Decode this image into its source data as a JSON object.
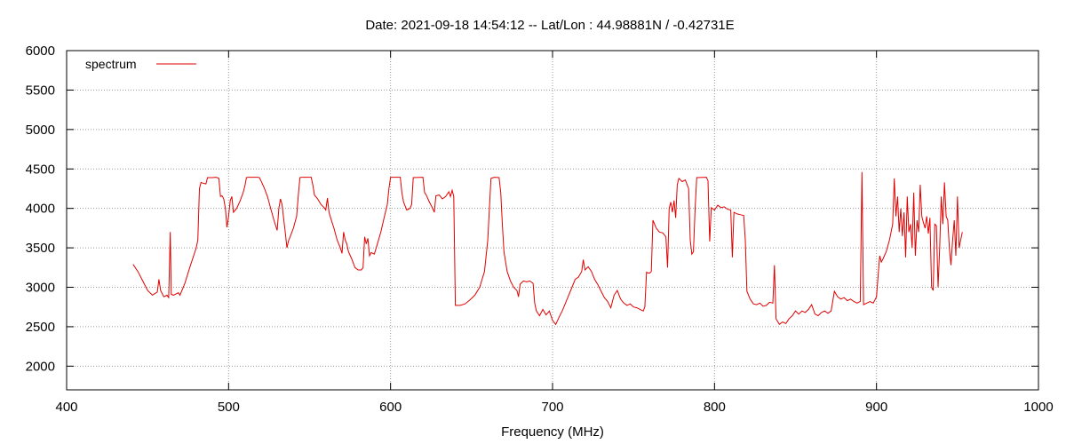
{
  "chart_data": {
    "type": "line",
    "title": "Date: 2021-09-18 14:54:12  --  Lat/Lon : 44.98881N / -0.42731E",
    "xlabel": "Frequency (MHz)",
    "ylabel": "",
    "xlim": [
      400,
      1000
    ],
    "ylim": [
      1700,
      6000
    ],
    "xticks": [
      400,
      500,
      600,
      700,
      800,
      900,
      1000
    ],
    "yticks": [
      2000,
      2500,
      3000,
      3500,
      4000,
      4500,
      5000,
      5500,
      6000
    ],
    "grid": true,
    "legend": "top-left",
    "series": [
      {
        "name": "spectrum",
        "color": "#e00000",
        "points": [
          [
            441,
            3290
          ],
          [
            444,
            3200
          ],
          [
            447,
            3080
          ],
          [
            450,
            2960
          ],
          [
            453,
            2900
          ],
          [
            456,
            2940
          ],
          [
            457,
            3100
          ],
          [
            458,
            2960
          ],
          [
            460,
            2880
          ],
          [
            462,
            2900
          ],
          [
            463,
            2870
          ],
          [
            464,
            3700
          ],
          [
            464.6,
            2910
          ],
          [
            466,
            2900
          ],
          [
            469,
            2930
          ],
          [
            470,
            2900
          ],
          [
            473,
            3050
          ],
          [
            476,
            3250
          ],
          [
            480,
            3500
          ],
          [
            481,
            3600
          ],
          [
            482,
            4250
          ],
          [
            483,
            4330
          ],
          [
            484,
            4320
          ],
          [
            486,
            4310
          ],
          [
            487,
            4390
          ],
          [
            490,
            4390
          ],
          [
            492,
            4395
          ],
          [
            493,
            4390
          ],
          [
            494,
            4380
          ],
          [
            495,
            4150
          ],
          [
            496,
            4160
          ],
          [
            497,
            4120
          ],
          [
            498,
            4000
          ],
          [
            499,
            3760
          ],
          [
            500,
            3900
          ],
          [
            501,
            4100
          ],
          [
            502,
            4150
          ],
          [
            503,
            3950
          ],
          [
            505,
            4000
          ],
          [
            507,
            4090
          ],
          [
            509,
            4200
          ],
          [
            510,
            4280
          ],
          [
            511,
            4390
          ],
          [
            512,
            4395
          ],
          [
            518,
            4395
          ],
          [
            519,
            4390
          ],
          [
            520,
            4350
          ],
          [
            522,
            4260
          ],
          [
            524,
            4150
          ],
          [
            526,
            4000
          ],
          [
            528,
            3850
          ],
          [
            530,
            3720
          ],
          [
            531,
            4000
          ],
          [
            532,
            4120
          ],
          [
            533,
            4050
          ],
          [
            534,
            3870
          ],
          [
            535,
            3700
          ],
          [
            536,
            3500
          ],
          [
            537,
            3590
          ],
          [
            538,
            3640
          ],
          [
            540,
            3750
          ],
          [
            542,
            3900
          ],
          [
            543,
            4150
          ],
          [
            544,
            4390
          ],
          [
            545,
            4395
          ],
          [
            551,
            4395
          ],
          [
            552,
            4300
          ],
          [
            553,
            4170
          ],
          [
            555,
            4120
          ],
          [
            557,
            4050
          ],
          [
            559,
            4010
          ],
          [
            560,
            3980
          ],
          [
            561,
            4130
          ],
          [
            562,
            3950
          ],
          [
            563,
            3880
          ],
          [
            565,
            3750
          ],
          [
            567,
            3600
          ],
          [
            569,
            3500
          ],
          [
            570,
            3430
          ],
          [
            571,
            3700
          ],
          [
            572,
            3600
          ],
          [
            573,
            3550
          ],
          [
            574,
            3450
          ],
          [
            576,
            3360
          ],
          [
            578,
            3250
          ],
          [
            580,
            3220
          ],
          [
            582,
            3220
          ],
          [
            583,
            3250
          ],
          [
            584,
            3640
          ],
          [
            585,
            3550
          ],
          [
            586,
            3620
          ],
          [
            587,
            3400
          ],
          [
            588,
            3440
          ],
          [
            590,
            3420
          ],
          [
            592,
            3560
          ],
          [
            594,
            3700
          ],
          [
            596,
            3880
          ],
          [
            598,
            4050
          ],
          [
            599,
            4250
          ],
          [
            600,
            4395
          ],
          [
            606,
            4395
          ],
          [
            607,
            4200
          ],
          [
            608,
            4080
          ],
          [
            610,
            3980
          ],
          [
            612,
            4000
          ],
          [
            613,
            4050
          ],
          [
            614,
            4390
          ],
          [
            620,
            4395
          ],
          [
            621,
            4200
          ],
          [
            622,
            4170
          ],
          [
            624,
            4080
          ],
          [
            626,
            4000
          ],
          [
            627,
            3950
          ],
          [
            628,
            4160
          ],
          [
            630,
            4170
          ],
          [
            632,
            4120
          ],
          [
            634,
            4150
          ],
          [
            636,
            4210
          ],
          [
            637,
            4150
          ],
          [
            638,
            4230
          ],
          [
            639,
            4150
          ],
          [
            640,
            2770
          ],
          [
            643,
            2770
          ],
          [
            646,
            2790
          ],
          [
            649,
            2840
          ],
          [
            652,
            2900
          ],
          [
            655,
            3000
          ],
          [
            658,
            3200
          ],
          [
            660,
            3600
          ],
          [
            661,
            4000
          ],
          [
            662,
            4380
          ],
          [
            664,
            4395
          ],
          [
            667,
            4390
          ],
          [
            668,
            4200
          ],
          [
            669,
            3800
          ],
          [
            670,
            3450
          ],
          [
            672,
            3200
          ],
          [
            674,
            3080
          ],
          [
            676,
            3000
          ],
          [
            678,
            2960
          ],
          [
            679,
            2880
          ],
          [
            680,
            3040
          ],
          [
            682,
            3080
          ],
          [
            684,
            3070
          ],
          [
            686,
            3080
          ],
          [
            688,
            3050
          ],
          [
            689,
            2800
          ],
          [
            690,
            2700
          ],
          [
            692,
            2640
          ],
          [
            694,
            2720
          ],
          [
            696,
            2650
          ],
          [
            698,
            2700
          ],
          [
            700,
            2580
          ],
          [
            702,
            2530
          ],
          [
            704,
            2620
          ],
          [
            706,
            2700
          ],
          [
            708,
            2800
          ],
          [
            710,
            2900
          ],
          [
            712,
            3000
          ],
          [
            714,
            3100
          ],
          [
            716,
            3130
          ],
          [
            718,
            3200
          ],
          [
            719,
            3350
          ],
          [
            720,
            3220
          ],
          [
            722,
            3260
          ],
          [
            724,
            3200
          ],
          [
            726,
            3100
          ],
          [
            728,
            3030
          ],
          [
            730,
            2950
          ],
          [
            732,
            2870
          ],
          [
            734,
            2820
          ],
          [
            736,
            2740
          ],
          [
            738,
            2900
          ],
          [
            740,
            2960
          ],
          [
            742,
            2850
          ],
          [
            744,
            2800
          ],
          [
            746,
            2770
          ],
          [
            748,
            2790
          ],
          [
            750,
            2750
          ],
          [
            752,
            2740
          ],
          [
            754,
            2720
          ],
          [
            756,
            2700
          ],
          [
            757,
            2750
          ],
          [
            758,
            3190
          ],
          [
            759,
            3180
          ],
          [
            760,
            3180
          ],
          [
            761,
            3200
          ],
          [
            762,
            3850
          ],
          [
            764,
            3750
          ],
          [
            766,
            3700
          ],
          [
            768,
            3690
          ],
          [
            770,
            3640
          ],
          [
            771,
            3250
          ],
          [
            772,
            4000
          ],
          [
            773,
            4080
          ],
          [
            774,
            3950
          ],
          [
            775,
            4100
          ],
          [
            776,
            3880
          ],
          [
            777,
            4300
          ],
          [
            778,
            4380
          ],
          [
            780,
            4340
          ],
          [
            782,
            4360
          ],
          [
            784,
            4250
          ],
          [
            785,
            3600
          ],
          [
            786,
            3420
          ],
          [
            787,
            3450
          ],
          [
            788,
            4000
          ],
          [
            789,
            4390
          ],
          [
            795,
            4395
          ],
          [
            796,
            4350
          ],
          [
            797,
            3580
          ],
          [
            798,
            4010
          ],
          [
            800,
            3980
          ],
          [
            802,
            4040
          ],
          [
            804,
            4010
          ],
          [
            806,
            4020
          ],
          [
            808,
            3990
          ],
          [
            810,
            3980
          ],
          [
            811,
            3380
          ],
          [
            812,
            3950
          ],
          [
            814,
            3930
          ],
          [
            816,
            3920
          ],
          [
            818,
            3910
          ],
          [
            819,
            3600
          ],
          [
            820,
            2950
          ],
          [
            822,
            2850
          ],
          [
            824,
            2790
          ],
          [
            826,
            2780
          ],
          [
            828,
            2800
          ],
          [
            830,
            2760
          ],
          [
            832,
            2770
          ],
          [
            834,
            2810
          ],
          [
            836,
            2800
          ],
          [
            837,
            3280
          ],
          [
            838,
            2600
          ],
          [
            840,
            2530
          ],
          [
            842,
            2560
          ],
          [
            844,
            2540
          ],
          [
            846,
            2600
          ],
          [
            848,
            2640
          ],
          [
            850,
            2700
          ],
          [
            852,
            2660
          ],
          [
            854,
            2700
          ],
          [
            856,
            2680
          ],
          [
            858,
            2720
          ],
          [
            860,
            2780
          ],
          [
            862,
            2660
          ],
          [
            864,
            2640
          ],
          [
            866,
            2680
          ],
          [
            868,
            2700
          ],
          [
            870,
            2670
          ],
          [
            872,
            2700
          ],
          [
            874,
            2950
          ],
          [
            876,
            2880
          ],
          [
            878,
            2850
          ],
          [
            880,
            2870
          ],
          [
            882,
            2830
          ],
          [
            884,
            2850
          ],
          [
            886,
            2820
          ],
          [
            888,
            2800
          ],
          [
            890,
            2820
          ],
          [
            891,
            4460
          ],
          [
            892,
            2780
          ],
          [
            894,
            2800
          ],
          [
            896,
            2820
          ],
          [
            898,
            2800
          ],
          [
            900,
            2880
          ],
          [
            901,
            3150
          ],
          [
            902,
            3400
          ],
          [
            903,
            3320
          ],
          [
            904,
            3360
          ],
          [
            906,
            3450
          ],
          [
            908,
            3600
          ],
          [
            910,
            3800
          ],
          [
            911,
            4380
          ],
          [
            912,
            3900
          ],
          [
            913,
            4150
          ],
          [
            914,
            3700
          ],
          [
            915,
            4000
          ],
          [
            916,
            3650
          ],
          [
            917,
            3950
          ],
          [
            918,
            3380
          ],
          [
            919,
            4150
          ],
          [
            920,
            3700
          ],
          [
            921,
            3800
          ],
          [
            922,
            3500
          ],
          [
            923,
            4200
          ],
          [
            924,
            3400
          ],
          [
            925,
            3850
          ],
          [
            926,
            3700
          ],
          [
            927,
            4300
          ],
          [
            928,
            3900
          ],
          [
            929,
            3820
          ],
          [
            930,
            3750
          ],
          [
            931,
            3900
          ],
          [
            932,
            3680
          ],
          [
            933,
            3880
          ],
          [
            934,
            3000
          ],
          [
            935,
            2960
          ],
          [
            936,
            3800
          ],
          [
            937,
            3780
          ],
          [
            938,
            3000
          ],
          [
            939,
            3500
          ],
          [
            940,
            4150
          ],
          [
            941,
            3800
          ],
          [
            942,
            4330
          ],
          [
            943,
            3900
          ],
          [
            944,
            3850
          ],
          [
            945,
            3500
          ],
          [
            946,
            3280
          ],
          [
            947,
            3600
          ],
          [
            948,
            3850
          ],
          [
            949,
            3400
          ],
          [
            950,
            4150
          ],
          [
            951,
            3500
          ],
          [
            952,
            3600
          ],
          [
            953,
            3700
          ]
        ]
      }
    ]
  }
}
